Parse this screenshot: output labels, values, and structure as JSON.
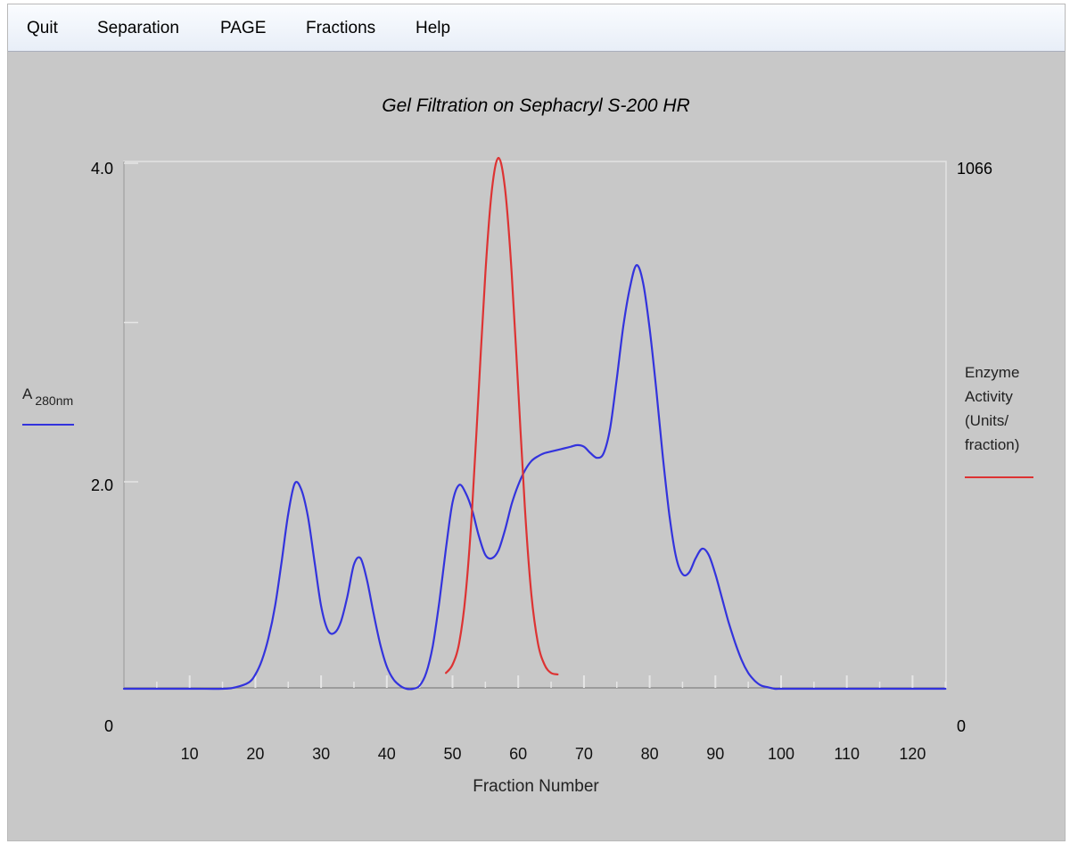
{
  "menu": {
    "quit": "Quit",
    "separation": "Separation",
    "page": "PAGE",
    "fractions": "Fractions",
    "help": "Help"
  },
  "colors": {
    "absorbance": "#3333dd",
    "activity": "#dd3333",
    "background": "#c8c8c8"
  },
  "chart_data": {
    "type": "line",
    "title": "Gel Filtration on Sephacryl S-200 HR",
    "xlabel": "Fraction Number",
    "xlim": [
      0,
      125
    ],
    "x_ticks": [
      10,
      20,
      30,
      40,
      50,
      60,
      70,
      80,
      90,
      100,
      110,
      120
    ],
    "left_axis": {
      "label_main": "A",
      "label_sub": "280nm",
      "ylim": [
        0,
        4.0
      ],
      "min_label": "0",
      "ticks": [
        "2.0",
        "4.0"
      ]
    },
    "right_axis": {
      "label_lines": [
        "Enzyme",
        "Activity",
        "(Units/",
        "fraction)"
      ],
      "ylim": [
        0,
        1066
      ],
      "min_label": "0",
      "max_label": "1066"
    },
    "series": [
      {
        "axis": "left",
        "x": [
          0,
          10,
          15,
          17,
          19,
          20,
          21,
          22,
          23,
          24,
          25,
          26,
          27,
          28,
          29,
          30,
          31,
          32,
          33,
          34,
          35,
          36,
          37,
          38,
          39,
          40,
          41,
          42,
          43,
          44,
          45,
          46,
          47,
          48,
          49,
          50,
          51,
          52,
          53,
          54,
          55,
          56,
          57,
          58,
          59,
          60,
          61,
          62,
          63,
          64,
          65,
          66,
          67,
          68,
          69,
          70,
          71,
          72,
          73,
          74,
          75,
          76,
          77,
          78,
          79,
          80,
          81,
          82,
          83,
          84,
          85,
          86,
          87,
          88,
          89,
          90,
          91,
          92,
          93,
          94,
          95,
          96,
          97,
          98,
          99,
          100,
          102,
          105,
          110,
          125
        ],
        "values": [
          0.7,
          0.7,
          0.7,
          0.71,
          0.74,
          0.79,
          0.88,
          1.02,
          1.22,
          1.5,
          1.8,
          1.99,
          1.95,
          1.78,
          1.5,
          1.22,
          1.07,
          1.05,
          1.12,
          1.28,
          1.48,
          1.52,
          1.38,
          1.17,
          0.98,
          0.84,
          0.76,
          0.72,
          0.7,
          0.7,
          0.72,
          0.8,
          0.97,
          1.25,
          1.58,
          1.87,
          1.98,
          1.93,
          1.82,
          1.66,
          1.54,
          1.52,
          1.57,
          1.7,
          1.86,
          1.98,
          2.07,
          2.13,
          2.16,
          2.18,
          2.19,
          2.2,
          2.21,
          2.22,
          2.23,
          2.22,
          2.18,
          2.15,
          2.18,
          2.34,
          2.65,
          2.98,
          3.22,
          3.36,
          3.25,
          2.96,
          2.58,
          2.16,
          1.79,
          1.53,
          1.42,
          1.43,
          1.52,
          1.58,
          1.54,
          1.42,
          1.27,
          1.12,
          0.99,
          0.88,
          0.8,
          0.75,
          0.72,
          0.71,
          0.7,
          0.7,
          0.7,
          0.7,
          0.7,
          0.7
        ]
      },
      {
        "axis": "right",
        "x": [
          49,
          50,
          51,
          52,
          53,
          54,
          55,
          56,
          57,
          58,
          59,
          60,
          61,
          62,
          63,
          64,
          65,
          66
        ],
        "values": [
          5,
          22,
          66,
          167,
          347,
          590,
          830,
          1001,
          1066,
          1001,
          830,
          590,
          347,
          167,
          66,
          22,
          5,
          2
        ]
      }
    ]
  }
}
